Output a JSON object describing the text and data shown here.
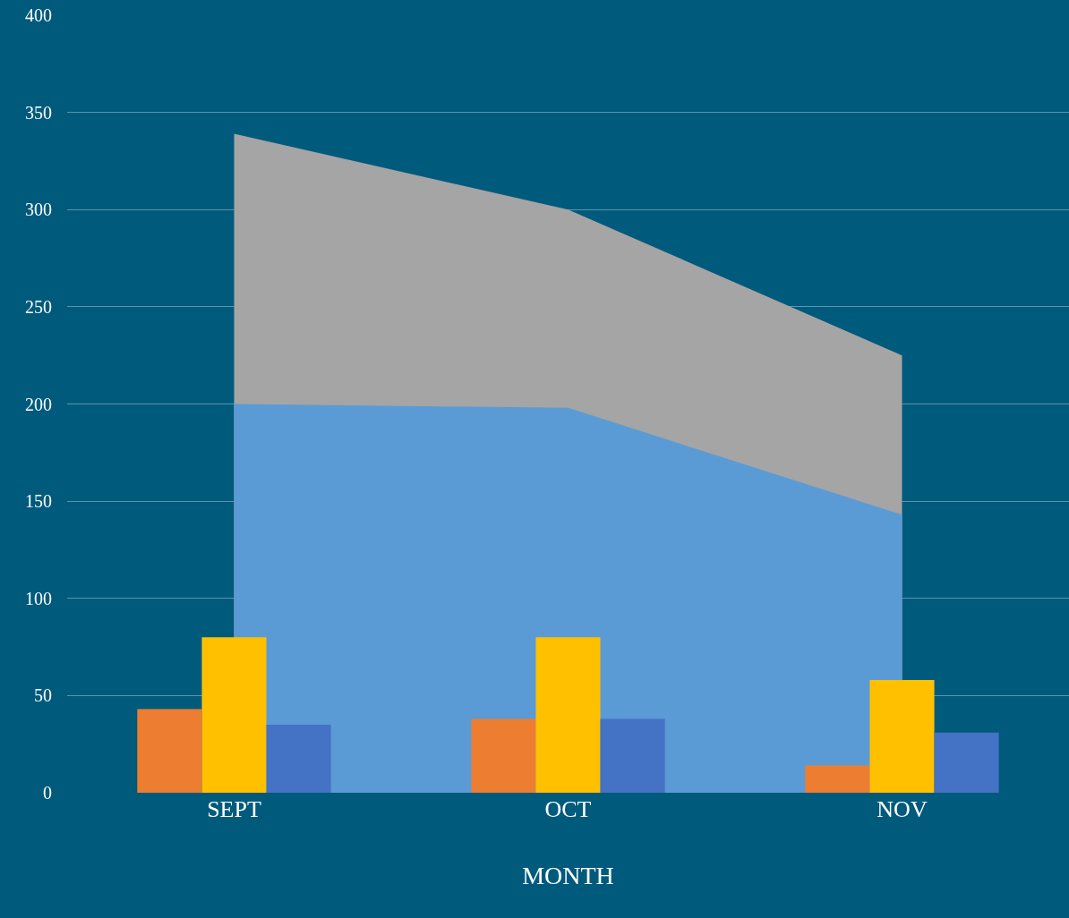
{
  "chart_data": {
    "type": "bar",
    "xlabel": "MONTH",
    "categories": [
      "SEPT",
      "OCT",
      "NOV"
    ],
    "series": [
      {
        "type": "area",
        "color": "#a5a5a5",
        "values": [
          339,
          300,
          225
        ]
      },
      {
        "type": "area",
        "color": "#5b9bd5",
        "values": [
          200,
          198,
          143
        ]
      },
      {
        "color": "#ed7d31",
        "values": [
          43,
          38,
          14
        ]
      },
      {
        "color": "#ffc000",
        "values": [
          80,
          80,
          58
        ]
      },
      {
        "color": "#4472c4",
        "values": [
          35,
          38,
          31
        ]
      }
    ],
    "ylim": [
      0,
      400
    ],
    "yticks": [
      0,
      50,
      100,
      150,
      200,
      250,
      300,
      350,
      400
    ],
    "grid": "y"
  }
}
